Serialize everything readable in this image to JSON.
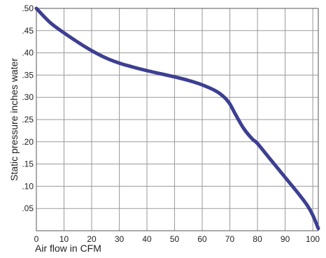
{
  "chart_data": {
    "type": "line",
    "title": "",
    "xlabel": "Air flow in CFM",
    "ylabel": "Static pressure inches water",
    "xlim": [
      0,
      102
    ],
    "ylim": [
      0,
      0.5
    ],
    "grid": true,
    "x_ticks": [
      "0",
      "10",
      "20",
      "30",
      "40",
      "50",
      "60",
      "70",
      "80",
      "90",
      "100"
    ],
    "y_ticks": [
      ".05",
      ".10",
      ".15",
      ".20",
      ".25",
      ".30",
      ".35",
      ".40",
      ".45",
      ".50"
    ],
    "colors": {
      "line": "#3d3f91",
      "grid": "#9a9a9a",
      "frame": "#555555"
    },
    "series": [
      {
        "x": [
          0,
          5,
          10,
          15,
          20,
          25,
          30,
          35,
          40,
          45,
          50,
          55,
          60,
          65,
          68,
          70,
          72,
          75,
          78,
          80,
          85,
          90,
          95,
          98,
          100,
          102
        ],
        "y": [
          0.5,
          0.468,
          0.445,
          0.424,
          0.405,
          0.389,
          0.377,
          0.368,
          0.36,
          0.353,
          0.346,
          0.338,
          0.328,
          0.314,
          0.3,
          0.285,
          0.262,
          0.23,
          0.207,
          0.196,
          0.158,
          0.12,
          0.082,
          0.057,
          0.035,
          0.005
        ]
      }
    ]
  }
}
